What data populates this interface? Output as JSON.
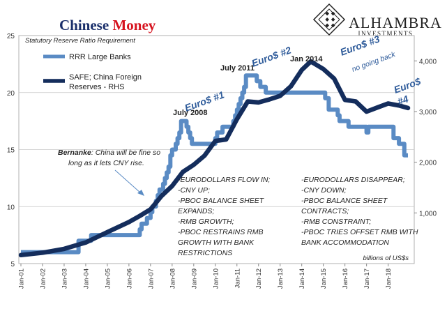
{
  "title": {
    "part1": "Chinese ",
    "part2": "Money"
  },
  "subtitle": "Statutory Reserve Ratio Requirement",
  "logo": {
    "name": "ALHAMBRA",
    "sub": "INVESTMENTS"
  },
  "chart_data": {
    "type": "line",
    "x_range": [
      "2001-01",
      "2018-12"
    ],
    "x_ticks": [
      "Jan-01",
      "Jan-02",
      "Jan-03",
      "Jan-04",
      "Jan-05",
      "Jan-06",
      "Jan-07",
      "Jan-08",
      "Jan-09",
      "Jan-10",
      "Jan-11",
      "Jan-12",
      "Jan-13",
      "Jan-14",
      "Jan-15",
      "Jan-16",
      "Jan-17",
      "Jan-18"
    ],
    "y_left": {
      "range": [
        5,
        25
      ],
      "ticks": [
        5,
        10,
        15,
        20,
        25
      ]
    },
    "y_right": {
      "range": [
        0,
        4500
      ],
      "ticks": [
        1000,
        2000,
        3000,
        4000
      ],
      "tick_labels": [
        "1,000",
        "2,000",
        "3,000",
        "4,000"
      ],
      "unit_label": "billions of US$s"
    },
    "grid": true,
    "legend_position": "top-left",
    "series": [
      {
        "name": "RRR Large Banks",
        "axis": "left",
        "color": "#5a8bc4",
        "step": true,
        "points": [
          [
            "2001-01",
            6
          ],
          [
            "2003-09",
            7
          ],
          [
            "2004-04",
            7.5
          ],
          [
            "2006-07",
            8
          ],
          [
            "2006-08",
            8.5
          ],
          [
            "2006-11",
            9
          ],
          [
            "2007-01",
            9.5
          ],
          [
            "2007-02",
            10
          ],
          [
            "2007-04",
            10.5
          ],
          [
            "2007-05",
            11
          ],
          [
            "2007-06",
            11.5
          ],
          [
            "2007-08",
            12
          ],
          [
            "2007-09",
            12.5
          ],
          [
            "2007-10",
            13
          ],
          [
            "2007-11",
            13.5
          ],
          [
            "2007-12",
            14.5
          ],
          [
            "2008-01",
            15
          ],
          [
            "2008-03",
            15.5
          ],
          [
            "2008-04",
            16
          ],
          [
            "2008-05",
            16.5
          ],
          [
            "2008-06",
            17.5
          ],
          [
            "2008-09",
            17
          ],
          [
            "2008-10",
            16.5
          ],
          [
            "2008-11",
            16
          ],
          [
            "2008-12",
            15.5
          ],
          [
            "2010-01",
            16
          ],
          [
            "2010-02",
            16.5
          ],
          [
            "2010-05",
            17
          ],
          [
            "2010-11",
            17.5
          ],
          [
            "2010-12",
            18
          ],
          [
            "2011-01",
            18.5
          ],
          [
            "2011-02",
            19
          ],
          [
            "2011-03",
            19.5
          ],
          [
            "2011-04",
            20
          ],
          [
            "2011-05",
            20.5
          ],
          [
            "2011-06",
            21.5
          ],
          [
            "2011-12",
            21
          ],
          [
            "2012-02",
            20.5
          ],
          [
            "2012-05",
            20
          ],
          [
            "2015-02",
            19.5
          ],
          [
            "2015-04",
            18.5
          ],
          [
            "2015-09",
            18
          ],
          [
            "2015-10",
            17.5
          ],
          [
            "2016-03",
            17
          ],
          [
            "2017-01",
            16.5
          ],
          [
            "2017-02",
            17
          ],
          [
            "2018-04",
            16
          ],
          [
            "2018-07",
            15.5
          ],
          [
            "2018-10",
            14.5
          ]
        ]
      },
      {
        "name": "SAFE; China Foreign Reserves - RHS",
        "axis": "right",
        "color": "#142d5c",
        "step": false,
        "points": [
          [
            "2001-01",
            168
          ],
          [
            "2002-01",
            215
          ],
          [
            "2003-01",
            290
          ],
          [
            "2004-01",
            415
          ],
          [
            "2005-01",
            620
          ],
          [
            "2006-01",
            820
          ],
          [
            "2006-07",
            940
          ],
          [
            "2007-01",
            1070
          ],
          [
            "2007-07",
            1330
          ],
          [
            "2008-01",
            1530
          ],
          [
            "2008-07",
            1810
          ],
          [
            "2009-01",
            1950
          ],
          [
            "2009-07",
            2130
          ],
          [
            "2010-01",
            2420
          ],
          [
            "2010-07",
            2450
          ],
          [
            "2011-01",
            2850
          ],
          [
            "2011-07",
            3200
          ],
          [
            "2012-01",
            3180
          ],
          [
            "2012-07",
            3240
          ],
          [
            "2013-01",
            3310
          ],
          [
            "2013-07",
            3500
          ],
          [
            "2014-01",
            3820
          ],
          [
            "2014-06",
            3990
          ],
          [
            "2015-01",
            3840
          ],
          [
            "2015-07",
            3650
          ],
          [
            "2016-01",
            3230
          ],
          [
            "2016-07",
            3200
          ],
          [
            "2017-01",
            2998
          ],
          [
            "2017-07",
            3080
          ],
          [
            "2018-01",
            3160
          ],
          [
            "2018-07",
            3120
          ],
          [
            "2018-12",
            3070
          ]
        ]
      }
    ],
    "annotations": [
      {
        "id": "july2008",
        "text": "July 2008"
      },
      {
        "id": "july2011",
        "text": "July 2011"
      },
      {
        "id": "jan2014",
        "text": "Jan 2014"
      },
      {
        "id": "euro1",
        "text": "Euro$ #1"
      },
      {
        "id": "euro2",
        "text": "Euro$ #2"
      },
      {
        "id": "euro3",
        "text": "Euro$ #3"
      },
      {
        "id": "euro3sub",
        "text": "no going back"
      },
      {
        "id": "euro4a",
        "text": "Euro$"
      },
      {
        "id": "euro4b",
        "text": "#4"
      },
      {
        "id": "bernanke1",
        "text": "Bernanke: China will be fine so"
      },
      {
        "id": "bernanke2",
        "text": "long as it lets CNY rise."
      }
    ],
    "notes_left": [
      "-EURODOLLARS FLOW IN;",
      "-CNY UP;",
      "-PBOC BALANCE SHEET",
      "EXPANDS;",
      "-RMB GROWTH;",
      "-PBOC RESTRAINS RMB",
      "GROWTH WITH BANK",
      "RESTRICTIONS"
    ],
    "notes_right": [
      "-EURODOLLARS DISAPPEAR;",
      "-CNY DOWN;",
      "-PBOC BALANCE SHEET",
      "CONTRACTS;",
      "-RMB CONSTRAINT;",
      "-PBOC TRIES OFFSET RMB WITH",
      "BANK ACCOMMODATION"
    ]
  },
  "colors": {
    "title_dark": "#1a2f6b",
    "title_red": "#d6121e",
    "annotation_blue": "#2e5b9a",
    "grid": "#c8c8c8"
  }
}
